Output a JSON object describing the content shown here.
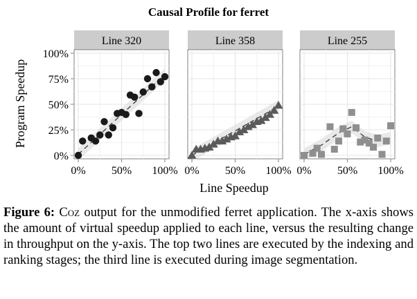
{
  "chart_data": {
    "type": "scatter",
    "title": "Causal Profile for ferret",
    "xlabel": "Line Speedup",
    "ylabel": "Program Speedup",
    "xlim": [
      0,
      100
    ],
    "ylim": [
      0,
      100
    ],
    "x_ticks": [
      "0%",
      "50%",
      "100%"
    ],
    "y_ticks": [
      "0%",
      "25%",
      "50%",
      "75%",
      "100%"
    ],
    "grid": true,
    "panels": [
      {
        "name": "Line 320",
        "marker": "circle",
        "color": "#1a1a1a",
        "x": [
          0,
          5,
          15,
          20,
          25,
          30,
          35,
          40,
          45,
          50,
          55,
          60,
          65,
          70,
          75,
          80,
          85,
          90,
          95,
          100
        ],
        "y": [
          0,
          14,
          17,
          14,
          20,
          33,
          20,
          27,
          41,
          42,
          40,
          59,
          57,
          41,
          62,
          75,
          67,
          81,
          72,
          77
        ],
        "trend_x": [
          0,
          100
        ],
        "trend_y": [
          1,
          79
        ]
      },
      {
        "name": "Line 358",
        "marker": "triangle",
        "color": "#5a5a5a",
        "x": [
          0,
          5,
          10,
          15,
          20,
          25,
          30,
          35,
          40,
          45,
          50,
          55,
          60,
          65,
          70,
          75,
          80,
          85,
          90,
          95,
          100
        ],
        "y": [
          0,
          6,
          6,
          7,
          8,
          11,
          14,
          14,
          16,
          18,
          19,
          23,
          25,
          28,
          30,
          33,
          34,
          37,
          40,
          44,
          49
        ],
        "trend_x": [
          0,
          100
        ],
        "trend_y": [
          0,
          48
        ]
      },
      {
        "name": "Line 255",
        "marker": "square",
        "color": "#8f8f8f",
        "x": [
          0,
          10,
          15,
          20,
          30,
          35,
          40,
          45,
          50,
          55,
          60,
          65,
          70,
          75,
          80,
          85,
          90,
          95,
          100
        ],
        "y": [
          0,
          2,
          7,
          1,
          28,
          6,
          14,
          26,
          21,
          42,
          27,
          13,
          15,
          12,
          8,
          17,
          1,
          14,
          29
        ],
        "trend_x": [
          0,
          20,
          40,
          55,
          70,
          85,
          100
        ],
        "trend_y": [
          1,
          10,
          22,
          28,
          18,
          14,
          17
        ]
      }
    ]
  },
  "caption": {
    "label": "Figure 6:",
    "tool": "Coz",
    "text": " output for the unmodified ferret application. The x-axis shows the amount of virtual speedup applied to each line, versus the resulting change in throughput on the y-axis. The top two lines are executed by the indexing and ranking stages; the third line is executed during image segmentation."
  }
}
